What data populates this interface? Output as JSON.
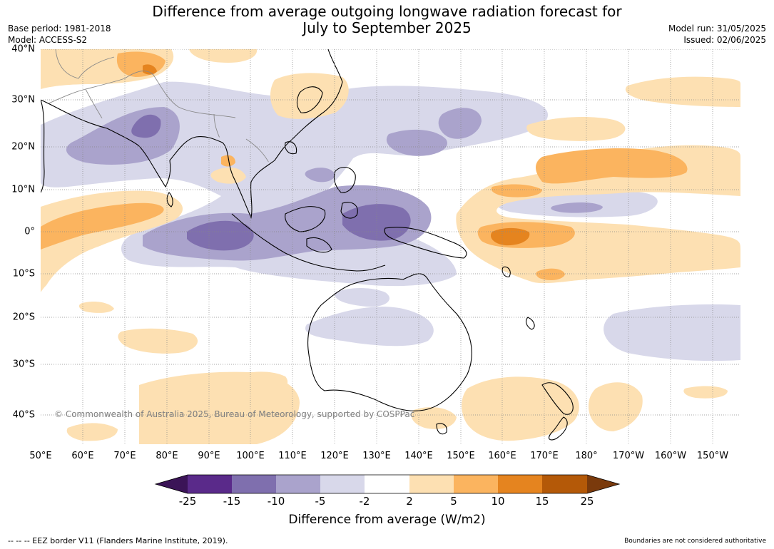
{
  "header": {
    "title_line1": "Difference from average outgoing longwave radiation forecast for",
    "title_line2": "July to September 2025",
    "base_period": "Base period: 1981-2018",
    "model": "Model: ACCESS-S2",
    "model_run": "Model run: 31/05/2025",
    "issued": "Issued: 02/06/2025"
  },
  "map": {
    "lon_labels": [
      "50°E",
      "60°E",
      "70°E",
      "80°E",
      "90°E",
      "100°E",
      "110°E",
      "120°E",
      "130°E",
      "140°E",
      "150°E",
      "160°E",
      "170°E",
      "180°",
      "170°W",
      "160°W",
      "150°W"
    ],
    "lat_labels": [
      "40°N",
      "30°N",
      "20°N",
      "10°N",
      "0°",
      "10°S",
      "20°S",
      "30°S",
      "40°S"
    ],
    "copyright": "© Commonwealth of Australia 2025, Bureau of Meteorology, supported by COSPPac"
  },
  "colorbar": {
    "title": "Difference from average (W/m2)",
    "labels": [
      "-25",
      "-15",
      "-10",
      "-5",
      "-2",
      "2",
      "5",
      "10",
      "15",
      "25"
    ],
    "colors": [
      "#3b1457",
      "#5a2a8a",
      "#7f6fae",
      "#aaa3cc",
      "#d8d8ea",
      "#ffffff",
      "#fde0b2",
      "#fbb45f",
      "#e5841f",
      "#b45908",
      "#7a3a0c"
    ]
  },
  "footer": {
    "eez_note": "--  --  -- EEZ border V11 (Flanders Marine Institute, 2019).",
    "boundaries_note": "Boundaries are not considered authoritative"
  }
}
